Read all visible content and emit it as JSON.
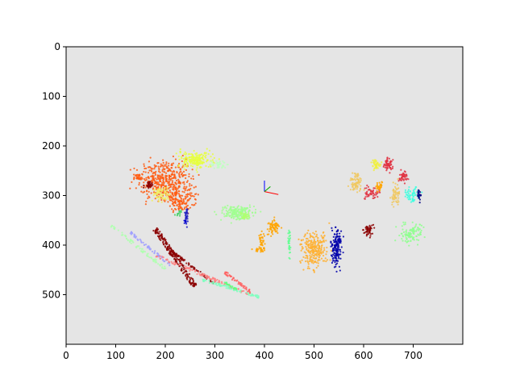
{
  "chart_data": {
    "type": "scatter",
    "title": "",
    "xlabel": "",
    "ylabel": "",
    "xlim": [
      0,
      800
    ],
    "ylim": [
      600,
      0
    ],
    "y_inverted": true,
    "grid": false,
    "background": "#e5e5e5",
    "x_ticks": [
      0,
      100,
      200,
      300,
      400,
      500,
      600,
      700
    ],
    "y_ticks": [
      0,
      100,
      200,
      300,
      400,
      500
    ],
    "axes_glyph": {
      "origin": [
        400,
        292
      ],
      "x_color": "#ff0000",
      "y_color": "#0000ff",
      "z_color": "#00aa00"
    },
    "clusters": [
      {
        "color": "#ff5a10",
        "kind": "blob",
        "center": [
          200,
          268
        ],
        "spread": [
          45,
          32
        ],
        "count": 420
      },
      {
        "color": "#ff5a10",
        "kind": "blob",
        "center": [
          232,
          310
        ],
        "spread": [
          22,
          22
        ],
        "count": 140
      },
      {
        "color": "#ff5a10",
        "kind": "blob",
        "center": [
          145,
          262
        ],
        "spread": [
          10,
          6
        ],
        "count": 30
      },
      {
        "color": "#e6ff40",
        "kind": "blob",
        "center": [
          262,
          228
        ],
        "spread": [
          30,
          14
        ],
        "count": 200
      },
      {
        "color": "#c0ffc0",
        "kind": "blob",
        "center": [
          310,
          238
        ],
        "spread": [
          14,
          6
        ],
        "count": 40
      },
      {
        "color": "#f0f060",
        "kind": "blob",
        "center": [
          192,
          298
        ],
        "spread": [
          14,
          12
        ],
        "count": 60
      },
      {
        "color": "#8b0000",
        "kind": "blob",
        "center": [
          168,
          278
        ],
        "spread": [
          8,
          6
        ],
        "count": 30
      },
      {
        "color": "#2020c0",
        "kind": "blob",
        "center": [
          242,
          340
        ],
        "spread": [
          3,
          16
        ],
        "count": 30
      },
      {
        "color": "#40d060",
        "kind": "blob",
        "center": [
          228,
          335
        ],
        "spread": [
          8,
          5
        ],
        "count": 12
      },
      {
        "color": "#a0ff90",
        "kind": "blob",
        "center": [
          345,
          335
        ],
        "spread": [
          28,
          12
        ],
        "count": 180
      },
      {
        "color": "#ffa500",
        "kind": "blob",
        "center": [
          418,
          365
        ],
        "spread": [
          10,
          14
        ],
        "count": 70
      },
      {
        "color": "#ffa500",
        "kind": "blob",
        "center": [
          395,
          395
        ],
        "spread": [
          6,
          18
        ],
        "count": 40
      },
      {
        "color": "#ffa500",
        "kind": "blob",
        "center": [
          388,
          410
        ],
        "spread": [
          10,
          3
        ],
        "count": 15
      },
      {
        "color": "#b0ff70",
        "kind": "blob",
        "center": [
          360,
          342
        ],
        "spread": [
          8,
          6
        ],
        "count": 30
      },
      {
        "color": "#60ff90",
        "kind": "blob",
        "center": [
          450,
          395
        ],
        "spread": [
          2,
          25
        ],
        "count": 30
      },
      {
        "color": "#ffb030",
        "kind": "blob",
        "center": [
          500,
          410
        ],
        "spread": [
          22,
          30
        ],
        "count": 260
      },
      {
        "color": "#0000aa",
        "kind": "blob",
        "center": [
          545,
          405
        ],
        "spread": [
          8,
          30
        ],
        "count": 160
      },
      {
        "color": "#f0c860",
        "kind": "blob",
        "center": [
          585,
          275
        ],
        "spread": [
          10,
          18
        ],
        "count": 80
      },
      {
        "color": "#f0f040",
        "kind": "blob",
        "center": [
          625,
          238
        ],
        "spread": [
          8,
          10
        ],
        "count": 40
      },
      {
        "color": "#e03040",
        "kind": "blob",
        "center": [
          650,
          238
        ],
        "spread": [
          8,
          12
        ],
        "count": 60
      },
      {
        "color": "#e03040",
        "kind": "blob",
        "center": [
          615,
          295
        ],
        "spread": [
          12,
          10
        ],
        "count": 50
      },
      {
        "color": "#ffa500",
        "kind": "blob",
        "center": [
          632,
          282
        ],
        "spread": [
          6,
          10
        ],
        "count": 30
      },
      {
        "color": "#f0c860",
        "kind": "blob",
        "center": [
          665,
          300
        ],
        "spread": [
          8,
          20
        ],
        "count": 60
      },
      {
        "color": "#e03040",
        "kind": "blob",
        "center": [
          680,
          262
        ],
        "spread": [
          8,
          10
        ],
        "count": 40
      },
      {
        "color": "#40ffe0",
        "kind": "blob",
        "center": [
          700,
          300
        ],
        "spread": [
          12,
          12
        ],
        "count": 60
      },
      {
        "color": "#000080",
        "kind": "blob",
        "center": [
          712,
          300
        ],
        "spread": [
          3,
          14
        ],
        "count": 20
      },
      {
        "color": "#8b0000",
        "kind": "blob",
        "center": [
          610,
          370
        ],
        "spread": [
          8,
          12
        ],
        "count": 50
      },
      {
        "color": "#90ff90",
        "kind": "blob",
        "center": [
          695,
          375
        ],
        "spread": [
          20,
          16
        ],
        "count": 110
      },
      {
        "color": "#0000cc",
        "kind": "blob",
        "center": [
          240,
          355
        ],
        "spread": [
          3,
          6
        ],
        "count": 8
      }
    ],
    "strokes": [
      {
        "color": "#8b0000",
        "from": [
          180,
          368
        ],
        "to": [
          260,
          483
        ],
        "width": 10,
        "count": 200
      },
      {
        "color": "#8b0000",
        "from": [
          210,
          410
        ],
        "to": [
          300,
          478
        ],
        "width": 4,
        "count": 60
      },
      {
        "color": "#b0ffb0",
        "from": [
          90,
          360
        ],
        "to": [
          200,
          448
        ],
        "width": 6,
        "count": 80
      },
      {
        "color": "#a0a0ff",
        "from": [
          130,
          375
        ],
        "to": [
          210,
          440
        ],
        "width": 5,
        "count": 60
      },
      {
        "color": "#ff8080",
        "from": [
          180,
          420
        ],
        "to": [
          370,
          500
        ],
        "width": 6,
        "count": 100
      },
      {
        "color": "#80ffc0",
        "from": [
          275,
          470
        ],
        "to": [
          390,
          505
        ],
        "width": 5,
        "count": 80
      },
      {
        "color": "#ff6060",
        "from": [
          320,
          455
        ],
        "to": [
          372,
          495
        ],
        "width": 6,
        "count": 50
      },
      {
        "color": "#60ff80",
        "from": [
          320,
          475
        ],
        "to": [
          345,
          490
        ],
        "width": 4,
        "count": 25
      }
    ]
  }
}
